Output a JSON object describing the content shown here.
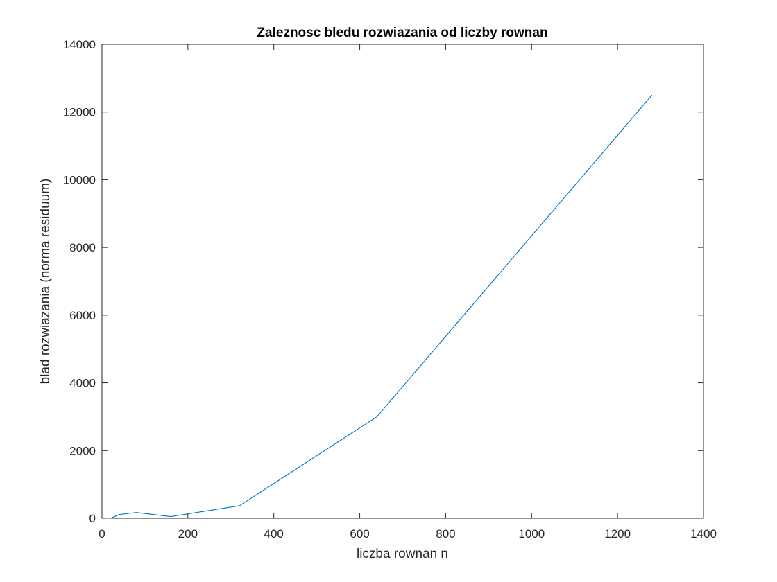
{
  "chart_data": {
    "type": "line",
    "title": "Zaleznosc bledu rozwiazania od liczby rownan",
    "xlabel": "liczba rownan n",
    "ylabel": "blad rozwiazania (norma residuum)",
    "xlim": [
      0,
      1400
    ],
    "ylim": [
      0,
      14000
    ],
    "xticks": [
      0,
      200,
      400,
      600,
      800,
      1000,
      1200,
      1400
    ],
    "yticks": [
      0,
      2000,
      4000,
      6000,
      8000,
      10000,
      12000,
      14000
    ],
    "grid": false,
    "line_color": "#0072BD",
    "series": [
      {
        "x": [
          10,
          20,
          40,
          80,
          160,
          320,
          640,
          1280
        ],
        "y": [
          0,
          0,
          110,
          170,
          50,
          370,
          3000,
          12500
        ]
      }
    ]
  }
}
